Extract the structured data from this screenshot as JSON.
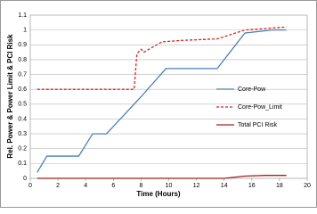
{
  "chart_data": {
    "type": "line",
    "x_label": "Time (Hours)",
    "y_label": "Rel. Power & Power Limit & PCI Risk",
    "xlim": [
      0,
      20
    ],
    "xticks": [
      0,
      2,
      4,
      6,
      8,
      10,
      12,
      14,
      16,
      18,
      20
    ],
    "ylim": [
      0,
      1.1
    ],
    "yticks": [
      0,
      0.1,
      0.2,
      0.3,
      0.4,
      0.5,
      0.6,
      0.7,
      0.8,
      0.9,
      1,
      1.1
    ],
    "grid": true,
    "legend": "right",
    "series": [
      {
        "name": "Core-Pow",
        "color": "#4a7ebb",
        "style": "solid",
        "x": [
          0.5,
          1.2,
          3.5,
          4.5,
          5.5,
          6.5,
          8,
          9.8,
          13.5,
          15.5,
          17.5,
          18.5
        ],
        "values": [
          0.04,
          0.15,
          0.15,
          0.3,
          0.3,
          0.4,
          0.55,
          0.74,
          0.74,
          0.98,
          1.0,
          1.0
        ]
      },
      {
        "name": "Core-Pow_Limit",
        "color": "#e02020",
        "style": "dashed",
        "x": [
          0.5,
          7.5,
          7.7,
          8,
          8.2,
          9.5,
          11,
          13.5,
          15.5,
          17,
          18.5
        ],
        "values": [
          0.6,
          0.6,
          0.84,
          0.87,
          0.85,
          0.92,
          0.93,
          0.94,
          1.0,
          1.01,
          1.02
        ]
      },
      {
        "name": "Total PCI Risk",
        "color": "#a02020",
        "style": "solid",
        "x": [
          0.5,
          14,
          15.5,
          17,
          18.5
        ],
        "values": [
          0,
          0,
          0.015,
          0.02,
          0.02
        ]
      }
    ]
  }
}
